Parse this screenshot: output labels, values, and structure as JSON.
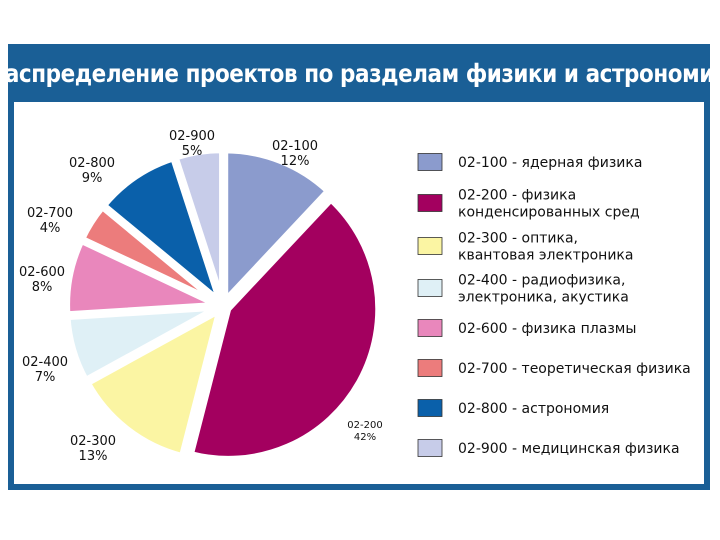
{
  "chart_data": {
    "type": "pie",
    "title": "Распределение проектов по разделам физики и астрономии",
    "categories": [
      "02-100",
      "02-200",
      "02-300",
      "02-400",
      "02-600",
      "02-700",
      "02-800",
      "02-900"
    ],
    "values": [
      12,
      42,
      13,
      7,
      8,
      4,
      9,
      5
    ],
    "labels": [
      "12%",
      "42%",
      "13%",
      "7%",
      "8%",
      "4%",
      "9%",
      "5%"
    ],
    "colors": [
      "#8b9bcd",
      "#a3005f",
      "#fbf5a3",
      "#dff0f6",
      "#e987bc",
      "#ec7c7c",
      "#0a60aa",
      "#c7cce9"
    ],
    "legend": [
      [
        "02-100 - ядерная физика"
      ],
      [
        "02-200 - физика",
        "конденсированных сред"
      ],
      [
        "02-300 - оптика,",
        "квантовая электроника"
      ],
      [
        "02-400 - радиофизика,",
        "электроника, акустика"
      ],
      [
        "02-600 - физика плазмы"
      ],
      [
        "02-700 - теоретическая физика"
      ],
      [
        "02-800 - астрономия"
      ],
      [
        "02-900 - медицинская физика"
      ]
    ],
    "legend_position": "right"
  }
}
